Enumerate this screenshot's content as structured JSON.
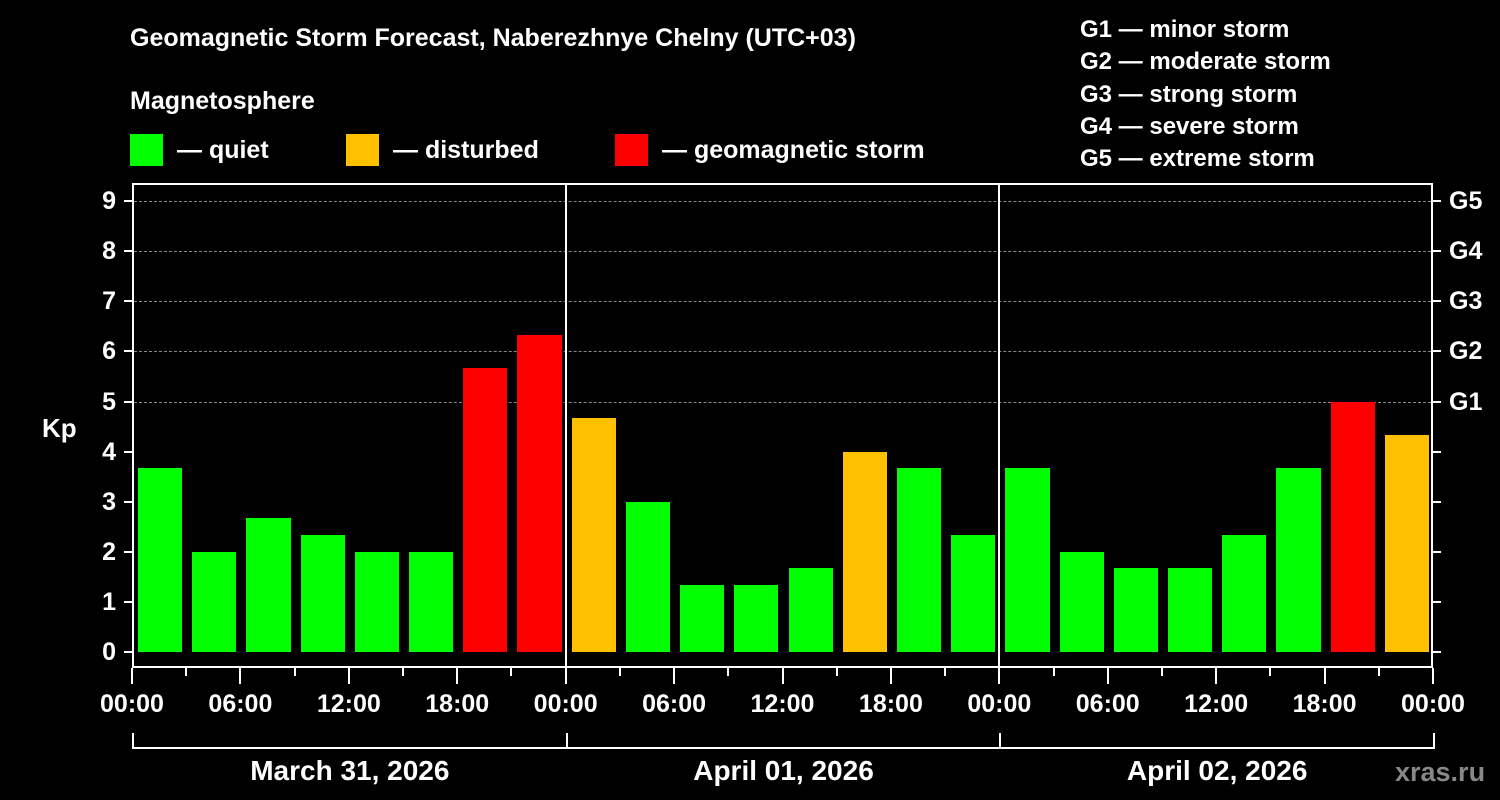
{
  "title": "Geomagnetic Storm Forecast, Naberezhnye Chelny (UTC+03)",
  "legend": {
    "heading": "Magnetosphere",
    "items": [
      {
        "label": "— quiet",
        "color": "#00ff00"
      },
      {
        "label": "— disturbed",
        "color": "#ffc000"
      },
      {
        "label": "— geomagnetic storm",
        "color": "#ff0000"
      }
    ]
  },
  "storm_scale": [
    "G1 — minor storm",
    "G2 — moderate storm",
    "G3 — strong storm",
    "G4 — severe storm",
    "G5 — extreme storm"
  ],
  "watermark": "xras.ru",
  "chart_data": {
    "type": "bar",
    "title": "Geomagnetic Storm Forecast, Naberezhnye Chelny (UTC+03)",
    "ylabel": "Kp",
    "xlabel": "",
    "ylim": [
      0,
      9
    ],
    "yticks": [
      0,
      1,
      2,
      3,
      4,
      5,
      6,
      7,
      8,
      9
    ],
    "y2ticks": [
      {
        "kp": 5,
        "label": "G1"
      },
      {
        "kp": 6,
        "label": "G2"
      },
      {
        "kp": 7,
        "label": "G3"
      },
      {
        "kp": 8,
        "label": "G4"
      },
      {
        "kp": 9,
        "label": "G5"
      }
    ],
    "grid": "dashed horizontal at Kp 5-9",
    "xtick_labels": [
      "00:00",
      "06:00",
      "12:00",
      "18:00",
      "00:00",
      "06:00",
      "12:00",
      "18:00",
      "00:00",
      "06:00",
      "12:00",
      "18:00",
      "00:00"
    ],
    "days": [
      "March 31, 2026",
      "April 01, 2026",
      "April 02, 2026"
    ],
    "interval_hours": 3,
    "categories": [
      "Mar31 00-03",
      "Mar31 03-06",
      "Mar31 06-09",
      "Mar31 09-12",
      "Mar31 12-15",
      "Mar31 15-18",
      "Mar31 18-21",
      "Mar31 21-24",
      "Apr01 00-03",
      "Apr01 03-06",
      "Apr01 06-09",
      "Apr01 09-12",
      "Apr01 12-15",
      "Apr01 15-18",
      "Apr01 18-21",
      "Apr01 21-24",
      "Apr02 00-03",
      "Apr02 03-06",
      "Apr02 06-09",
      "Apr02 09-12",
      "Apr02 12-15",
      "Apr02 15-18",
      "Apr02 18-21",
      "Apr02 21-24"
    ],
    "values": [
      3.67,
      2,
      2.67,
      2.33,
      2,
      2,
      5.67,
      6.33,
      4.67,
      3,
      1.33,
      1.33,
      1.67,
      4,
      3.67,
      2.33,
      3.67,
      2,
      1.67,
      1.67,
      2.33,
      3.67,
      5,
      4.33
    ],
    "status": [
      "quiet",
      "quiet",
      "quiet",
      "quiet",
      "quiet",
      "quiet",
      "storm",
      "storm",
      "disturbed",
      "quiet",
      "quiet",
      "quiet",
      "quiet",
      "disturbed",
      "quiet",
      "quiet",
      "quiet",
      "quiet",
      "quiet",
      "quiet",
      "quiet",
      "quiet",
      "storm",
      "disturbed"
    ],
    "colors": {
      "quiet": "#00ff00",
      "disturbed": "#ffc000",
      "storm": "#ff0000"
    }
  }
}
